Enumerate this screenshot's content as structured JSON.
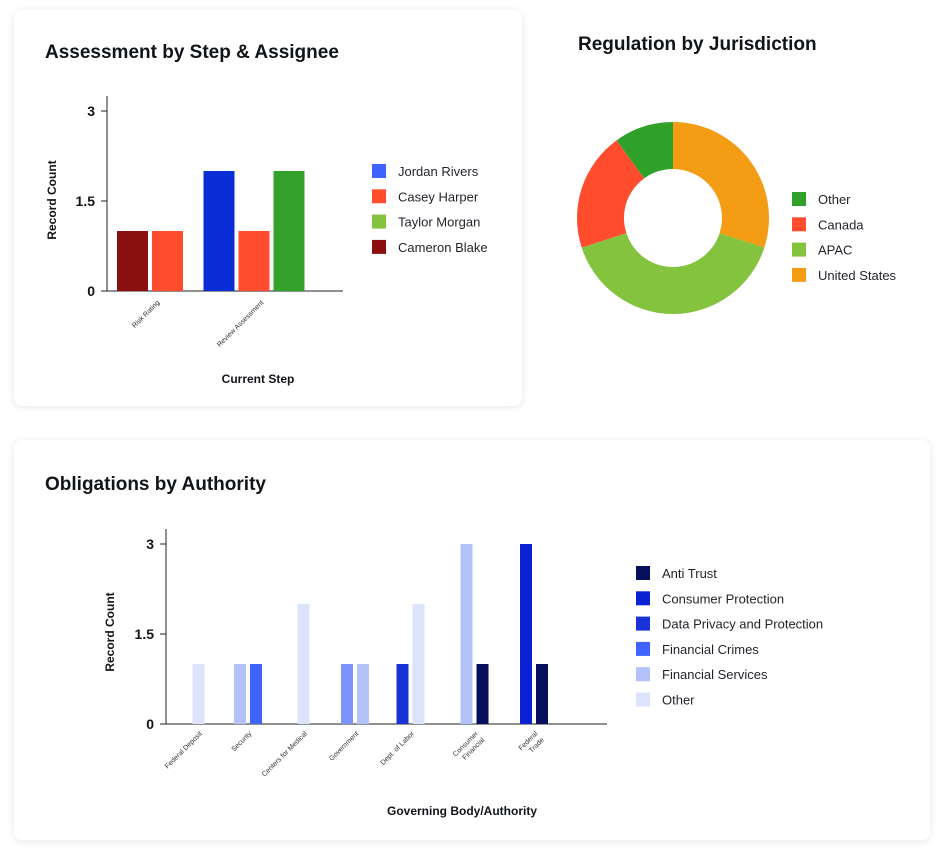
{
  "cards": {
    "assessment": {
      "title": "Assessment by Step & Assignee"
    },
    "regulation": {
      "title": "Regulation by Jurisdiction"
    },
    "obligations": {
      "title": "Obligations by Authority"
    }
  },
  "chart_data": [
    {
      "id": "assessment",
      "type": "bar",
      "title": "Assessment by Step & Assignee",
      "xlabel": "Current Step",
      "ylabel": "Record Count",
      "yticks": [
        0,
        1.5,
        3
      ],
      "ylim": [
        0,
        3
      ],
      "grid": false,
      "legend_position": "right",
      "categories": [
        "Risk Rating",
        "Review Assessment"
      ],
      "bars": [
        {
          "category": 0,
          "series": "Cameron Blake",
          "value": 1
        },
        {
          "category": 0,
          "series": "Casey Harper",
          "value": 1
        },
        {
          "category": 1,
          "series": "Jordan Rivers",
          "value": 2
        },
        {
          "category": 1,
          "series": "Casey Harper",
          "value": 1
        },
        {
          "category": 1,
          "series": "Taylor Morgan",
          "value": 2
        }
      ],
      "series": [
        {
          "name": "Jordan Rivers",
          "color": "#3f63ff",
          "bar_color": "#0a2ed6",
          "values": [
            0,
            2
          ]
        },
        {
          "name": "Casey Harper",
          "color": "#ff4d2e",
          "bar_color": "#ff4d2e",
          "values": [
            1,
            1
          ]
        },
        {
          "name": "Taylor Morgan",
          "color": "#84c33e",
          "bar_color": "#34a22a",
          "values": [
            0,
            2
          ]
        },
        {
          "name": "Cameron Blake",
          "color": "#8b0f0f",
          "bar_color": "#8b0f0f",
          "values": [
            1,
            0
          ]
        }
      ]
    },
    {
      "id": "regulation",
      "type": "pie",
      "title": "Regulation by Jurisdiction",
      "legend_position": "right",
      "legend_order": [
        "Other",
        "Canada",
        "APAC",
        "United States"
      ],
      "slices": [
        {
          "label": "United States",
          "value": 3,
          "color": "#f49c14"
        },
        {
          "label": "APAC",
          "value": 4,
          "color": "#84c33e"
        },
        {
          "label": "Canada",
          "value": 2,
          "color": "#ff4d2e"
        },
        {
          "label": "Other",
          "value": 1,
          "color": "#2fa02a"
        }
      ]
    },
    {
      "id": "obligations",
      "type": "bar",
      "title": "Obligations by Authority",
      "xlabel": "Governing Body/Authority",
      "ylabel": "Record Count",
      "yticks": [
        0,
        1.5,
        3
      ],
      "ylim": [
        0,
        3
      ],
      "grid": false,
      "legend_position": "right",
      "categories": [
        [
          "Federal Deposit"
        ],
        [
          "Security"
        ],
        [
          "Centers for Medical"
        ],
        [
          "Government"
        ],
        [
          "Dept. of Labor"
        ],
        [
          "Consumer",
          "Financial"
        ],
        [
          "Federal",
          "Trade"
        ]
      ],
      "series": [
        {
          "name": "Anti Trust",
          "color": "#07105c"
        },
        {
          "name": "Consumer Protection",
          "color": "#0a22d4"
        },
        {
          "name": "Data Privacy and Protection",
          "color": "#1a33d8"
        },
        {
          "name": "Financial Crimes",
          "color": "#3f63ff"
        },
        {
          "name": "Financial Services",
          "color": "#b4c2fc"
        },
        {
          "name": "Other",
          "color": "#dde3fb"
        }
      ],
      "bars": [
        {
          "category": 0,
          "series": "Other",
          "value": 1,
          "color": "#dde3fb"
        },
        {
          "category": 1,
          "series": "Financial Services",
          "value": 1,
          "color": "#b4c2fc"
        },
        {
          "category": 1,
          "series": "Financial Crimes",
          "value": 1,
          "color": "#3f63ff"
        },
        {
          "category": 2,
          "series": "Other",
          "value": 2,
          "color": "#dde3fb"
        },
        {
          "category": 3,
          "series": "Financial Crimes",
          "value": 1,
          "color": "#7b93ff"
        },
        {
          "category": 3,
          "series": "Financial Services",
          "value": 1,
          "color": "#b4c2fc"
        },
        {
          "category": 4,
          "series": "Data Privacy and Protection",
          "value": 1,
          "color": "#1a33d8"
        },
        {
          "category": 4,
          "series": "Other",
          "value": 2,
          "color": "#dde3fb"
        },
        {
          "category": 5,
          "series": "Financial Services",
          "value": 3,
          "color": "#b4c2fc"
        },
        {
          "category": 5,
          "series": "Anti Trust",
          "value": 1,
          "color": "#07105c"
        },
        {
          "category": 6,
          "series": "Consumer Protection",
          "value": 3,
          "color": "#0a22d4"
        },
        {
          "category": 6,
          "series": "Anti Trust",
          "value": 1,
          "color": "#07105c"
        }
      ]
    }
  ]
}
